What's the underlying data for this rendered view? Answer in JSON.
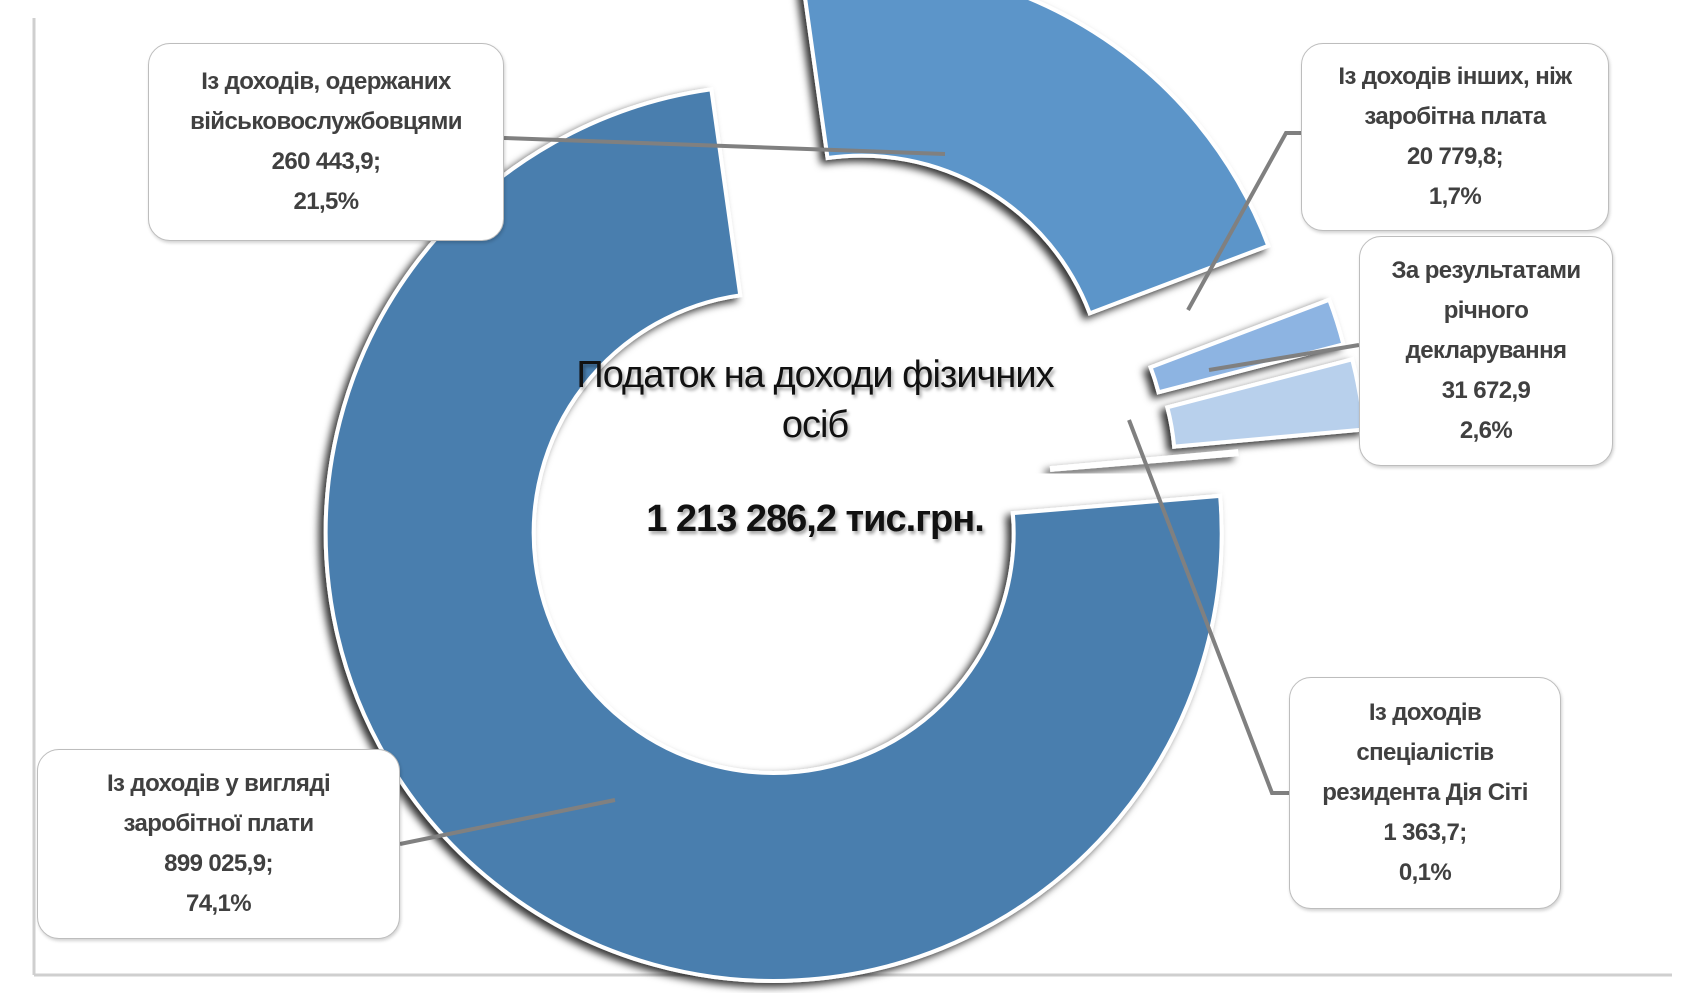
{
  "chart_data": {
    "type": "pie",
    "variant": "exploded-donut",
    "title": "Податок на доходи фізичних осіб",
    "total_label": "1 213 286,2 тис.грн.",
    "slices": [
      {
        "label_lines": [
          "Із доходів у вигляді",
          "заробітної плати"
        ],
        "value": 899025.9,
        "value_text": "899 025,9;",
        "percent": 74.1,
        "percent_text": "74,1%",
        "color": "#4a7eae"
      },
      {
        "label_lines": [
          "Із доходів, одержаних",
          "військовослужбовцями"
        ],
        "value": 260443.9,
        "value_text": "260 443,9;",
        "percent": 21.5,
        "percent_text": "21,5%",
        "color": "#5b95c9"
      },
      {
        "label_lines": [
          "Із доходів інших, ніж",
          "заробітна плата"
        ],
        "value": 20779.8,
        "value_text": "20 779,8;",
        "percent": 1.7,
        "percent_text": "1,7%",
        "color": "#8db4e2"
      },
      {
        "label_lines": [
          "За результатами",
          "річного",
          "декларування"
        ],
        "value": 31672.9,
        "value_text": "31 672,9",
        "percent": 2.6,
        "percent_text": "2,6%",
        "color": "#b8d0ec"
      },
      {
        "label_lines": [
          "Із доходів",
          "спеціалістів",
          "резидента Дія Сіті"
        ],
        "value": 1363.7,
        "value_text": "1 363,7;",
        "percent": 0.1,
        "percent_text": "0,1%",
        "color": "#dde9f6"
      }
    ]
  }
}
